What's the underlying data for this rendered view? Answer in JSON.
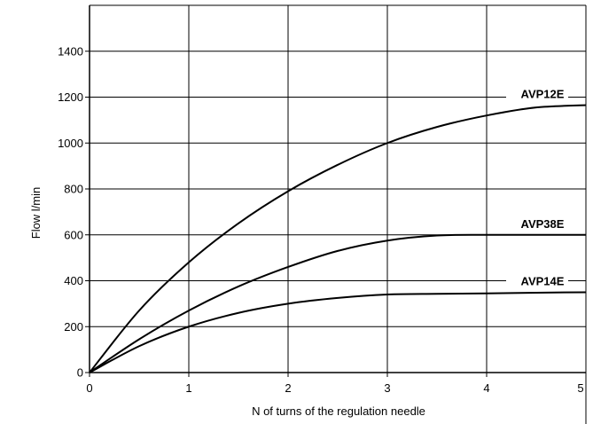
{
  "chart_data": {
    "type": "line",
    "title": "",
    "xlabel": "N of turns of the regulation needle",
    "ylabel": "Flow l/min",
    "xlim": [
      0,
      5
    ],
    "ylim": [
      0,
      1600
    ],
    "x_ticks": [
      0,
      1,
      2,
      3,
      4,
      5
    ],
    "y_ticks": [
      0,
      200,
      400,
      600,
      800,
      1000,
      1200,
      1400
    ],
    "grid": true,
    "legend": "inline labels at right end of each curve",
    "series": [
      {
        "name": "AVP12E",
        "x": [
          0,
          0.5,
          1,
          1.5,
          2,
          2.5,
          3,
          3.5,
          4,
          4.5,
          5
        ],
        "y": [
          0,
          270,
          480,
          650,
          790,
          905,
          1000,
          1070,
          1120,
          1155,
          1165
        ]
      },
      {
        "name": "AVP38E",
        "x": [
          0,
          0.5,
          1,
          1.5,
          2,
          2.5,
          3,
          3.5,
          4,
          4.5,
          5
        ],
        "y": [
          0,
          145,
          270,
          375,
          460,
          530,
          575,
          597,
          600,
          600,
          600
        ]
      },
      {
        "name": "AVP14E",
        "x": [
          0,
          0.5,
          1,
          1.5,
          2,
          2.5,
          3,
          3.5,
          4,
          4.5,
          5
        ],
        "y": [
          0,
          115,
          200,
          260,
          300,
          325,
          340,
          343,
          345,
          348,
          350
        ]
      }
    ]
  }
}
